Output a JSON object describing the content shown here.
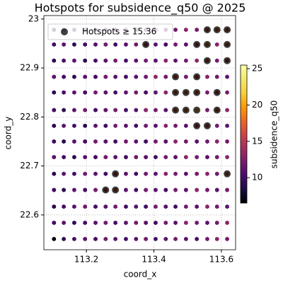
{
  "chart_data": {
    "type": "scatter",
    "title": "Hotspots for subsidence_q50 @ 2025",
    "x_label": "coord_x",
    "y_label": "coord_y",
    "x": [
      113.104,
      113.133,
      113.164,
      113.196,
      113.227,
      113.257,
      113.286,
      113.317,
      113.347,
      113.376,
      113.405,
      113.435,
      113.464,
      113.495,
      113.527,
      113.558,
      113.587,
      113.617
    ],
    "y": [
      22.978,
      22.948,
      22.915,
      22.882,
      22.85,
      22.814,
      22.782,
      22.75,
      22.718,
      22.684,
      22.651,
      22.617,
      22.584,
      22.551
    ],
    "values": [
      [
        9,
        9,
        10,
        10,
        11,
        10,
        10,
        11,
        10,
        11,
        12,
        11,
        12,
        13,
        12,
        17,
        18,
        17
      ],
      [
        10,
        11,
        9,
        10,
        11,
        12,
        10,
        11,
        12,
        16,
        11,
        10,
        12,
        11,
        16,
        18,
        13,
        17
      ],
      [
        9,
        10,
        11,
        9,
        10,
        11,
        12,
        10,
        11,
        12,
        11,
        13,
        11,
        12,
        13,
        17,
        12,
        16
      ],
      [
        11,
        10,
        9,
        11,
        10,
        12,
        11,
        10,
        11,
        12,
        13,
        12,
        17,
        12,
        16,
        13,
        12,
        11
      ],
      [
        9,
        10,
        11,
        10,
        12,
        11,
        10,
        11,
        12,
        10,
        11,
        13,
        17,
        18,
        17,
        12,
        16,
        12
      ],
      [
        10,
        9,
        11,
        12,
        10,
        11,
        12,
        10,
        11,
        13,
        12,
        11,
        17,
        18,
        21,
        12,
        17,
        13
      ],
      [
        9,
        11,
        10,
        9,
        11,
        10,
        12,
        11,
        10,
        12,
        11,
        13,
        12,
        11,
        16,
        17,
        12,
        11
      ],
      [
        10,
        9,
        11,
        10,
        12,
        11,
        10,
        12,
        11,
        10,
        12,
        11,
        13,
        12,
        11,
        12,
        13,
        12
      ],
      [
        11,
        10,
        9,
        11,
        10,
        12,
        11,
        10,
        12,
        11,
        10,
        12,
        11,
        13,
        12,
        11,
        12,
        13
      ],
      [
        9,
        11,
        10,
        12,
        11,
        10,
        16,
        11,
        10,
        12,
        11,
        13,
        12,
        11,
        12,
        13,
        12,
        17
      ],
      [
        10,
        9,
        11,
        10,
        12,
        16,
        17,
        11,
        10,
        12,
        11,
        10,
        12,
        11,
        13,
        12,
        11,
        12
      ],
      [
        9,
        10,
        11,
        12,
        10,
        11,
        12,
        10,
        11,
        10,
        12,
        11,
        10,
        12,
        11,
        13,
        12,
        11
      ],
      [
        10,
        11,
        9,
        10,
        11,
        12,
        10,
        11,
        12,
        11,
        10,
        12,
        11,
        13,
        12,
        11,
        12,
        13
      ],
      [
        7,
        9,
        10,
        11,
        10,
        12,
        11,
        10,
        11,
        12,
        10,
        11,
        12,
        11,
        10,
        12,
        13,
        12
      ]
    ],
    "hotspots": {
      "name": "Hotspots ≥ 15.36",
      "color": "#000000",
      "x": [
        113.558,
        113.587,
        113.617,
        113.376,
        113.527,
        113.558,
        113.617,
        113.558,
        113.617,
        113.464,
        113.527,
        113.464,
        113.495,
        113.527,
        113.587,
        113.464,
        113.495,
        113.527,
        113.587,
        113.527,
        113.558,
        113.286,
        113.617,
        113.257,
        113.286
      ],
      "y": [
        22.978,
        22.978,
        22.978,
        22.948,
        22.948,
        22.948,
        22.948,
        22.915,
        22.915,
        22.882,
        22.882,
        22.85,
        22.85,
        22.85,
        22.85,
        22.814,
        22.814,
        22.814,
        22.814,
        22.782,
        22.782,
        22.684,
        22.684,
        22.651,
        22.651
      ]
    },
    "xlim": [
      113.074,
      113.642
    ],
    "ylim": [
      22.529,
      23.007
    ],
    "xticks": [
      113.2,
      113.4,
      113.6
    ],
    "yticks": [
      22.6,
      22.7,
      22.8,
      22.9,
      23.0
    ],
    "clim": [
      6.5,
      25.5
    ],
    "cticks": [
      10,
      15,
      20,
      25
    ],
    "colorbar_label": "subsidence_q50",
    "grid": true,
    "legend": "upper left"
  }
}
